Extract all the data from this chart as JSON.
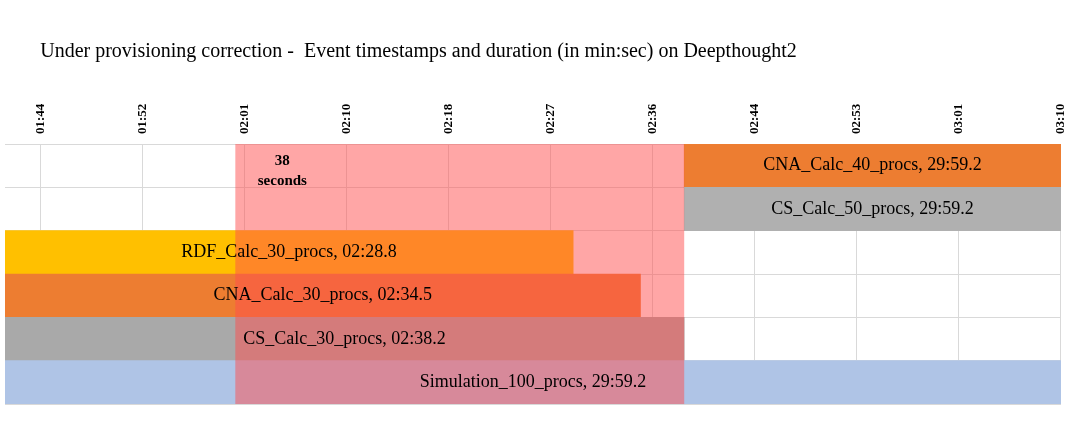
{
  "chart_data": {
    "type": "bar",
    "orientation": "horizontal",
    "title": "Under provisioning correction -  Event timestamps and duration (in min:sec) on Deepthought2",
    "categories": [
      null,
      null,
      null,
      null,
      null,
      null
    ],
    "values": [
      31.9,
      31.9,
      48.1,
      53.8,
      57.5,
      89.4
    ],
    "base": [
      158.2,
      158.2,
      100.7,
      100.7,
      100.7,
      100.7
    ],
    "colors": [
      "#ed7d31",
      "#b0b0b0",
      "#ffc000",
      "#ed7d31",
      "#a9a9a9",
      "#afc4e6"
    ],
    "annotations": [
      "CNA_Calc_40_procs, 29:59.2",
      "CS_Calc_50_procs, 29:59.2",
      "RDF_Calc_30_procs, 02:28.8",
      "CNA_Calc_30_procs, 02:34.5",
      "CS_Calc_30_procs, 02:38.2",
      "Simulation_100_procs, 29:59.2"
    ],
    "xlim": [
      100.7,
      190.1
    ],
    "xticks": [
      {
        "value": 103.68,
        "label": "01:44"
      },
      {
        "value": 112.32,
        "label": "01:52"
      },
      {
        "value": 120.96,
        "label": "02:01"
      },
      {
        "value": 129.6,
        "label": "02:10"
      },
      {
        "value": 138.24,
        "label": "02:18"
      },
      {
        "value": 146.88,
        "label": "02:27"
      },
      {
        "value": 155.52,
        "label": "02:36"
      },
      {
        "value": 164.16,
        "label": "02:44"
      },
      {
        "value": 172.8,
        "label": "02:53"
      },
      {
        "value": 181.44,
        "label": "03:01"
      },
      {
        "value": 190.08,
        "label": "03:10"
      }
    ],
    "bands": [
      {
        "axis": "x",
        "from": 120.2,
        "to": 158.2,
        "label": "38 seconds",
        "color": "#ff4d4d"
      }
    ],
    "grid": true,
    "legend": false
  }
}
